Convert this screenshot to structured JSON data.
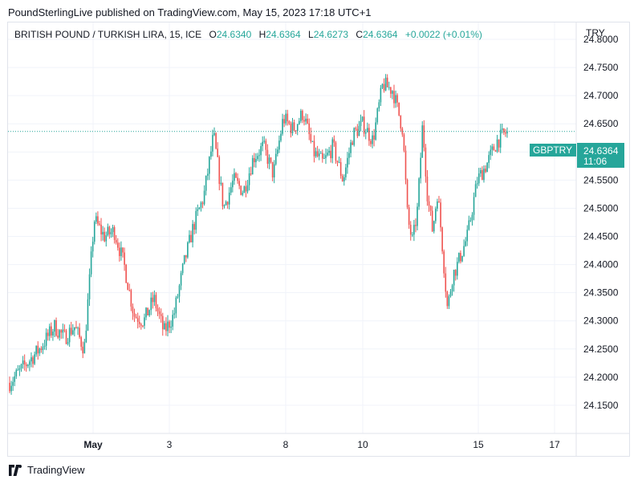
{
  "header": {
    "published_by": "PoundSterlingLive published on TradingView.com, May 15, 2023 17:18 UTC+1"
  },
  "legend": {
    "symbol": "BRITISH POUND / TURKISH LIRA, 15, ICE",
    "o_label": "O",
    "o_value": "24.6340",
    "h_label": "H",
    "h_value": "24.6364",
    "l_label": "L",
    "l_value": "24.6273",
    "c_label": "C",
    "c_value": "24.6364",
    "change": "+0.0022 (+0.01%)"
  },
  "currency": "TRY",
  "price_tag": {
    "ticker": "GBPTRY",
    "price": "24.6364",
    "countdown": "11:06"
  },
  "footer": {
    "brand": "TradingView"
  },
  "colors": {
    "up": "#26a69a",
    "down": "#ef5350",
    "grid": "#f0f3fa",
    "tag": "#26a69a"
  },
  "chart_data": {
    "type": "candlestick",
    "instrument": "GBPTRY",
    "interval": "15",
    "x_ticks": [
      "May",
      "3",
      "8",
      "10",
      "15",
      "17"
    ],
    "y_ticks": [
      "24.8000",
      "24.7500",
      "24.7000",
      "24.6500",
      "24.6000",
      "24.5500",
      "24.5000",
      "24.4500",
      "24.4000",
      "24.3500",
      "24.3000",
      "24.2500",
      "24.2000",
      "24.1500"
    ],
    "ylim": [
      24.1,
      24.83
    ],
    "last_price": 24.6364,
    "close_path": [
      [
        0,
        24.19
      ],
      [
        0.03,
        24.22
      ],
      [
        0.06,
        24.25
      ],
      [
        0.09,
        24.29
      ],
      [
        0.11,
        24.27
      ],
      [
        0.13,
        24.29
      ],
      [
        0.15,
        24.25
      ],
      [
        0.17,
        24.48
      ],
      [
        0.19,
        24.45
      ],
      [
        0.21,
        24.46
      ],
      [
        0.23,
        24.4
      ],
      [
        0.25,
        24.31
      ],
      [
        0.27,
        24.3
      ],
      [
        0.29,
        24.34
      ],
      [
        0.31,
        24.28
      ],
      [
        0.33,
        24.31
      ],
      [
        0.35,
        24.4
      ],
      [
        0.37,
        24.47
      ],
      [
        0.39,
        24.52
      ],
      [
        0.41,
        24.63
      ],
      [
        0.43,
        24.5
      ],
      [
        0.45,
        24.55
      ],
      [
        0.47,
        24.53
      ],
      [
        0.49,
        24.59
      ],
      [
        0.51,
        24.61
      ],
      [
        0.53,
        24.56
      ],
      [
        0.55,
        24.66
      ],
      [
        0.57,
        24.64
      ],
      [
        0.59,
        24.67
      ],
      [
        0.61,
        24.6
      ],
      [
        0.63,
        24.58
      ],
      [
        0.65,
        24.61
      ],
      [
        0.67,
        24.55
      ],
      [
        0.69,
        24.63
      ],
      [
        0.71,
        24.65
      ],
      [
        0.73,
        24.62
      ],
      [
        0.75,
        24.72
      ],
      [
        0.77,
        24.71
      ],
      [
        0.79,
        24.64
      ],
      [
        0.8,
        24.48
      ],
      [
        0.81,
        24.44
      ],
      [
        0.82,
        24.5
      ],
      [
        0.83,
        24.65
      ],
      [
        0.84,
        24.52
      ],
      [
        0.85,
        24.46
      ],
      [
        0.86,
        24.53
      ],
      [
        0.87,
        24.43
      ],
      [
        0.88,
        24.32
      ],
      [
        0.89,
        24.38
      ],
      [
        0.9,
        24.4
      ],
      [
        0.92,
        24.45
      ],
      [
        0.94,
        24.55
      ],
      [
        0.96,
        24.58
      ],
      [
        0.98,
        24.62
      ],
      [
        1.0,
        24.6364
      ]
    ]
  }
}
